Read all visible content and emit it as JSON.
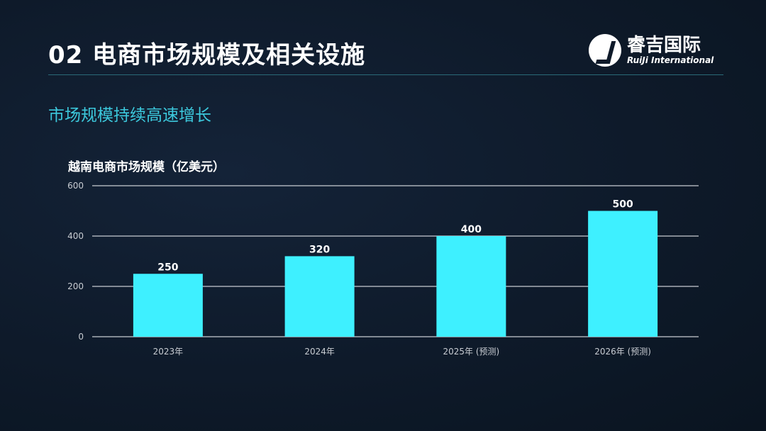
{
  "header": {
    "title": "02 电商市场规模及相关设施",
    "logo_cn": "睿吉国际",
    "logo_en": "RuiJi International"
  },
  "subtitle": "市场规模持续高速增长",
  "colors": {
    "bar": "#3ef0ff",
    "grid": "#c8ccd2",
    "accent": "#3cc8dc"
  },
  "chart_data": {
    "type": "bar",
    "title": "越南电商市场规模（亿美元）",
    "categories": [
      "2023年",
      "2024年",
      "2025年 (预测)",
      "2026年 (预测)"
    ],
    "values": [
      250,
      320,
      400,
      500
    ],
    "data_labels": [
      "250",
      "320",
      "400",
      "500"
    ],
    "yticks": [
      0,
      200,
      400,
      600
    ],
    "ytick_labels": [
      "0",
      "200",
      "400",
      "600"
    ],
    "ylim": [
      0,
      600
    ],
    "xlabel": "",
    "ylabel": "",
    "grid": true
  }
}
